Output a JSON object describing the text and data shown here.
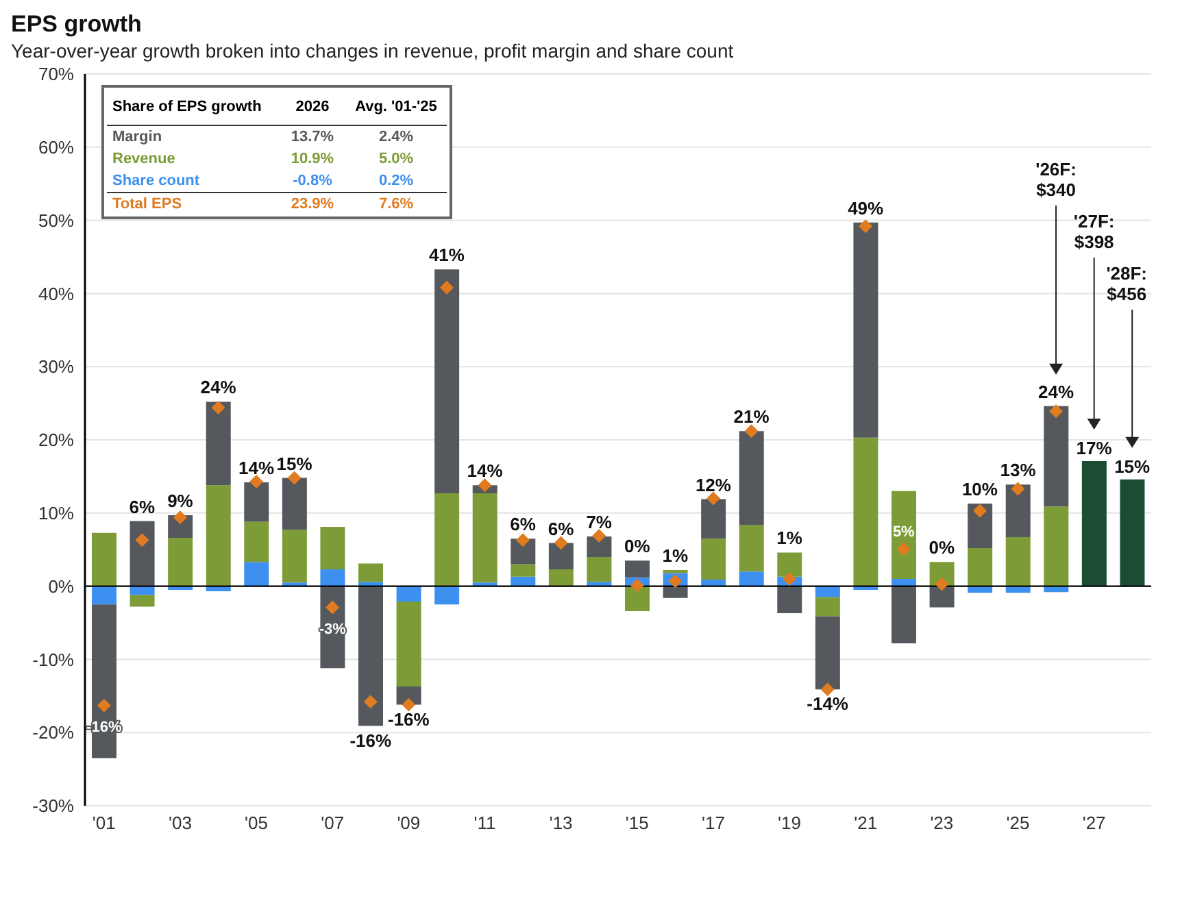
{
  "chart_data": {
    "type": "bar",
    "title": "EPS growth",
    "subtitle": "Year-over-year growth broken into changes in revenue, profit margin and share count",
    "legend_title": "Share of EPS growth",
    "categories": [
      "'01",
      null,
      "'03",
      null,
      "'05",
      null,
      "'07",
      null,
      "'09",
      null,
      "'11",
      null,
      "'13",
      null,
      "'15",
      null,
      "'17",
      null,
      "'19",
      null,
      "'21",
      null,
      "'23",
      null,
      "'25",
      null,
      "'27",
      null
    ],
    "stacked": true,
    "series": [
      {
        "name": "Share count",
        "color": "#3d8ff0",
        "values": [
          -2.5,
          -1.2,
          -0.5,
          -0.7,
          3.3,
          0.5,
          2.3,
          0.6,
          -2.1,
          -2.5,
          0.5,
          1.3,
          null,
          0.6,
          1.2,
          1.8,
          0.9,
          2.0,
          1.3,
          -1.5,
          -0.5,
          1.0,
          null,
          -0.9,
          -0.9,
          -0.8,
          null,
          null
        ]
      },
      {
        "name": "Revenue",
        "color": "#7d9c38",
        "values": [
          7.3,
          -1.6,
          6.6,
          13.8,
          5.5,
          7.2,
          5.8,
          2.5,
          -11.6,
          12.7,
          12.2,
          1.7,
          2.3,
          3.4,
          -3.4,
          0.4,
          5.6,
          6.4,
          3.3,
          -2.6,
          20.3,
          12.0,
          3.3,
          5.2,
          6.7,
          10.9,
          null,
          null
        ]
      },
      {
        "name": "Margin",
        "color": "#55595d",
        "values": [
          -21.0,
          8.9,
          3.1,
          11.4,
          5.4,
          7.1,
          -11.2,
          -19.1,
          -2.5,
          30.6,
          1.1,
          3.5,
          3.6,
          2.8,
          2.3,
          -1.6,
          5.4,
          12.8,
          -3.7,
          -10.0,
          29.4,
          -7.8,
          -2.9,
          6.1,
          7.2,
          13.7,
          null,
          null
        ]
      },
      {
        "name": "Total EPS",
        "type": "scatter",
        "marker": "diamond",
        "color": "#e07b1f",
        "values": [
          -16.3,
          6.3,
          9.4,
          24.4,
          14.3,
          14.8,
          -2.9,
          -15.8,
          -16.2,
          40.8,
          13.8,
          6.3,
          5.9,
          6.9,
          0.1,
          0.7,
          12.0,
          21.2,
          1.0,
          -14.1,
          49.2,
          5.1,
          0.3,
          10.3,
          13.3,
          23.9,
          null,
          null
        ],
        "value_labels": [
          "-16%",
          "6%",
          "9%",
          "24%",
          "14%",
          "15%",
          "-3%",
          "-16%",
          "-16%",
          "41%",
          "14%",
          "6%",
          "6%",
          "7%",
          "0%",
          "1%",
          "12%",
          "21%",
          "1%",
          "-14%",
          "49%",
          "5%",
          "0%",
          "10%",
          "13%",
          "24%",
          null,
          null
        ]
      },
      {
        "color": "#1b4d33",
        "values": [
          null,
          null,
          null,
          null,
          null,
          null,
          null,
          null,
          null,
          null,
          null,
          null,
          null,
          null,
          null,
          null,
          null,
          null,
          null,
          null,
          null,
          null,
          null,
          null,
          null,
          null,
          17.1,
          14.6
        ],
        "value_labels": [
          null,
          null,
          null,
          null,
          null,
          null,
          null,
          null,
          null,
          null,
          null,
          null,
          null,
          null,
          null,
          null,
          null,
          null,
          null,
          null,
          null,
          null,
          null,
          null,
          null,
          null,
          "17%",
          "15%"
        ]
      }
    ],
    "ylim": [
      -30,
      70
    ],
    "yticks": [
      {
        "value": -30,
        "label": "-30%"
      },
      {
        "value": -20,
        "label": "-20%"
      },
      {
        "value": -10,
        "label": "-10%"
      },
      {
        "value": 0,
        "label": "0%"
      },
      {
        "value": 10,
        "label": "10%"
      },
      {
        "value": 20,
        "label": "20%"
      },
      {
        "value": 30,
        "label": "30%"
      },
      {
        "value": 40,
        "label": "40%"
      },
      {
        "value": 50,
        "label": "50%"
      },
      {
        "value": 60,
        "label": "60%"
      },
      {
        "value": 70,
        "label": "70%"
      }
    ],
    "grid": "y",
    "legend": "top left",
    "ref_lines": [
      {
        "axis": "y",
        "value": 0,
        "color": "#000000"
      }
    ],
    "annotations": [
      "2026",
      "Avg. '01-'25",
      "13.7%",
      "2.4%",
      "10.9%",
      "5.0%",
      "-0.8%",
      "0.2%",
      "23.9%",
      "7.6%",
      "'26F: $340",
      "'27F: $398",
      "'28F: $456"
    ]
  }
}
